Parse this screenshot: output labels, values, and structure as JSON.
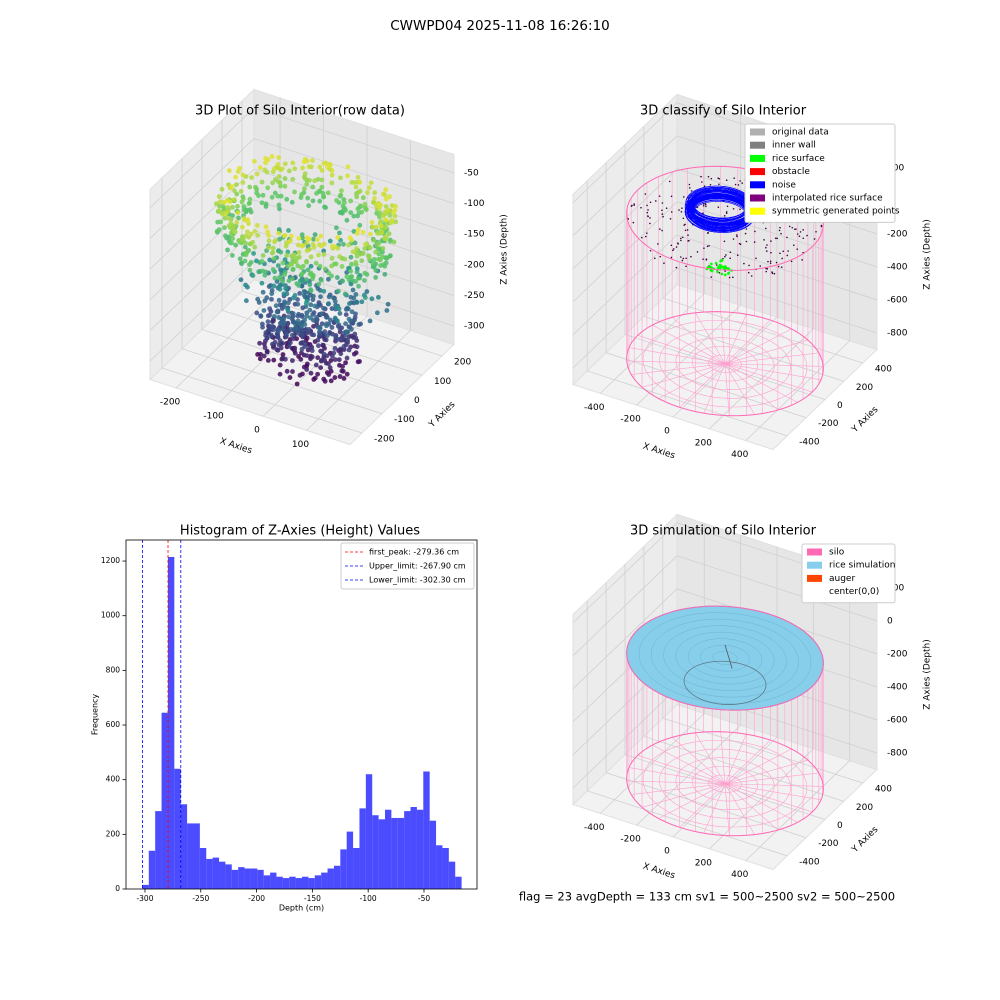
{
  "title": "CWWPD04 2025-11-08 16:26:10",
  "footer": "flag = 23  avgDepth = 133 cm  sv1 = 500~2500  sv2 = 500~2500",
  "chart_data": [
    {
      "type": "scatter3d",
      "title": "3D Plot of Silo Interior(row data)",
      "xlabel": "X Axies",
      "ylabel": "Y Axies",
      "zlabel": "Z Axies (Depth)",
      "xlim": [
        -260,
        200
      ],
      "ylim": [
        -260,
        260
      ],
      "zlim": [
        -330,
        -20
      ],
      "xticks": [
        -200,
        -100,
        0,
        100
      ],
      "yticks": [
        -200,
        -100,
        0,
        100,
        200
      ],
      "zticks": [
        -300,
        -250,
        -200,
        -150,
        -100,
        -50
      ]
    },
    {
      "type": "classify3d",
      "title": "3D classify of Silo Interior",
      "xlabel": "X Axies",
      "ylabel": "Y Axies",
      "zlabel": "Z Axies (Depth)",
      "xlim": [
        -550,
        550
      ],
      "ylim": [
        -550,
        550
      ],
      "zlim": [
        -900,
        250
      ],
      "xticks": [
        -400,
        -200,
        0,
        200,
        400
      ],
      "yticks": [
        -400,
        -200,
        0,
        200,
        400
      ],
      "zticks": [
        -800,
        -600,
        -400,
        -200,
        0,
        200
      ],
      "legend": [
        {
          "name": "original data",
          "color": "#b0b0b0"
        },
        {
          "name": "inner wall",
          "color": "#808080"
        },
        {
          "name": "rice surface",
          "color": "#00ff00"
        },
        {
          "name": "obstacle",
          "color": "#ff0000"
        },
        {
          "name": "noise",
          "color": "#0000ff"
        },
        {
          "name": "interpolated rice surface",
          "color": "#800080"
        },
        {
          "name": "symmetric generated points",
          "color": "#ffff00"
        }
      ]
    },
    {
      "type": "histogram",
      "title": "Histogram of Z-Axies (Height) Values",
      "xlabel": "Depth (cm)",
      "ylabel": "Frequency",
      "color": "#0000ff",
      "xlim": [
        -317,
        -2.5
      ],
      "ylim": [
        0,
        1277
      ],
      "xticks": [
        -300,
        -250,
        -200,
        -150,
        -100,
        -50
      ],
      "yticks": [
        0,
        200,
        400,
        600,
        800,
        1000,
        1200
      ],
      "bins": [
        -302.3,
        -296.58,
        -290.86,
        -285.14,
        -279.42,
        -273.7,
        -267.98,
        -262.26,
        -256.54,
        -250.82,
        -245.1,
        -239.38,
        -233.66,
        -227.94,
        -222.22,
        -216.5,
        -210.78,
        -205.06,
        -199.34,
        -193.62,
        -187.9,
        -182.18,
        -176.46,
        -170.74,
        -165.02,
        -159.3,
        -153.58,
        -147.86,
        -142.14,
        -136.42,
        -130.7,
        -124.98,
        -119.26,
        -113.54,
        -107.82,
        -102.1,
        -96.38,
        -90.66,
        -84.94,
        -79.22,
        -73.5,
        -67.78,
        -62.06,
        -56.34,
        -50.62,
        -44.9,
        -39.18,
        -33.46,
        -27.74,
        -22.02,
        -16.3
      ],
      "values": [
        15,
        140,
        285,
        645,
        1215,
        440,
        310,
        240,
        240,
        150,
        110,
        115,
        100,
        90,
        70,
        80,
        75,
        75,
        70,
        50,
        60,
        45,
        40,
        45,
        40,
        45,
        40,
        50,
        60,
        75,
        85,
        145,
        210,
        150,
        295,
        420,
        270,
        255,
        290,
        260,
        260,
        285,
        300,
        290,
        430,
        250,
        160,
        150,
        100,
        45
      ],
      "vlines": [
        {
          "label": "first_peak: -279.36 cm",
          "value": -279.36,
          "color": "#ff0000"
        },
        {
          "label": "Upper_limit: -267.90 cm",
          "value": -267.9,
          "color": "#0000ff"
        },
        {
          "label": "Lower_limit: -302.30 cm",
          "value": -302.3,
          "color": "#0000ff"
        }
      ]
    },
    {
      "type": "simulation3d",
      "title": "3D simulation of Silo Interior",
      "xlabel": "X Axies",
      "ylabel": "Y Axies",
      "zlabel": "Z Axies (Depth)",
      "xlim": [
        -550,
        550
      ],
      "ylim": [
        -550,
        550
      ],
      "zlim": [
        -900,
        250
      ],
      "xticks": [
        -400,
        -200,
        0,
        200,
        400
      ],
      "yticks": [
        -400,
        -200,
        0,
        200,
        400
      ],
      "zticks": [
        -800,
        -600,
        -400,
        -200,
        0,
        200
      ],
      "legend": [
        {
          "name": "silo",
          "color": "#ff69b4"
        },
        {
          "name": "rice simulation",
          "color": "#87ceeb"
        },
        {
          "name": "auger",
          "color": "#ff4500"
        },
        {
          "name": "center(0,0)",
          "color": "#ffffff"
        }
      ]
    }
  ]
}
